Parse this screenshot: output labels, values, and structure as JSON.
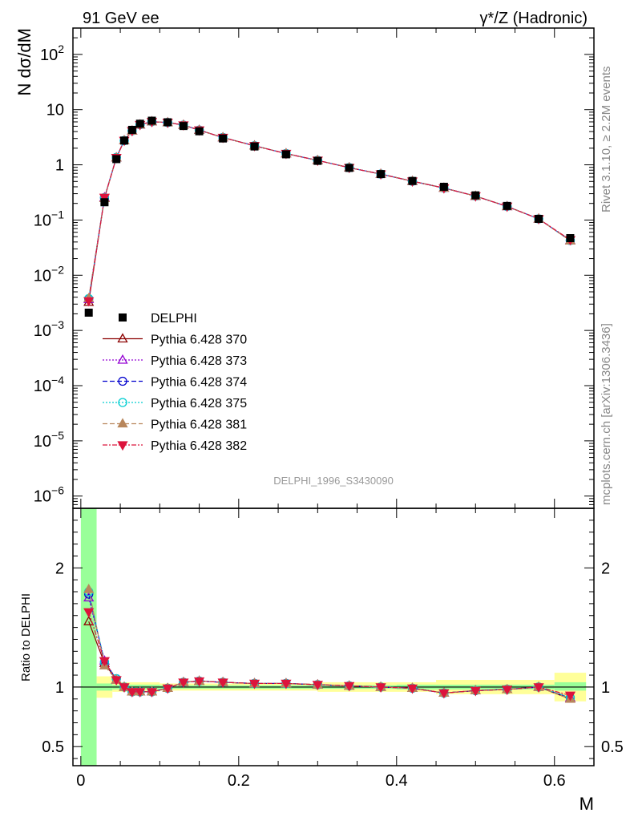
{
  "header": {
    "left_label": "91 GeV ee",
    "right_label": "γ*/Z (Hadronic)"
  },
  "side": {
    "rivet": "Rivet 3.1.10, ≥ 2.2M events",
    "source": "mcplots.cern.ch [arXiv:1306.3436]"
  },
  "watermark": "DELPHI_1996_S3430090",
  "chart_data": {
    "type": "line",
    "xlabel": "M",
    "ylabel": "N dσ/dM",
    "ratio_ylabel": "Ratio to DELPHI",
    "xlim": [
      -0.01,
      0.65
    ],
    "ylim": [
      6e-07,
      300
    ],
    "ratio_ylim": [
      0.34,
      2.5
    ],
    "yscale": "log",
    "x_ticks": [
      "0",
      "0.2",
      "0.4",
      "0.6"
    ],
    "y_ticks": [
      {
        "base": "10",
        "exp": "2"
      },
      {
        "base": "10",
        "exp": ""
      },
      {
        "base": "1",
        "exp": ""
      },
      {
        "base": "10",
        "exp": "−1"
      },
      {
        "base": "10",
        "exp": "−2"
      },
      {
        "base": "10",
        "exp": "−3"
      },
      {
        "base": "10",
        "exp": "−4"
      },
      {
        "base": "10",
        "exp": "−5"
      },
      {
        "base": "10",
        "exp": "−6"
      }
    ],
    "ratio_ticks": [
      "2",
      "1",
      "0.5"
    ],
    "legend_position": "center-left",
    "x": [
      0.01,
      0.03,
      0.045,
      0.055,
      0.065,
      0.075,
      0.09,
      0.11,
      0.13,
      0.15,
      0.18,
      0.22,
      0.26,
      0.3,
      0.34,
      0.38,
      0.42,
      0.46,
      0.5,
      0.54,
      0.58,
      0.62
    ],
    "data_series": {
      "name": "DELPHI",
      "values": [
        0.0021,
        0.21,
        1.27,
        2.75,
        4.3,
        5.55,
        6.3,
        5.9,
        5.05,
        4.05,
        3.0,
        2.15,
        1.55,
        1.18,
        0.88,
        0.68,
        0.51,
        0.4,
        0.28,
        0.18,
        0.105,
        0.047
      ],
      "color": "#000000",
      "band_stat": [
        [
          0.0,
          0.02,
          0.34,
          2.5
        ],
        [
          0.02,
          0.04,
          0.97,
          1.03
        ],
        [
          0.04,
          0.1,
          0.98,
          1.02
        ],
        [
          0.1,
          0.4,
          0.985,
          1.015
        ],
        [
          0.4,
          0.6,
          0.98,
          1.02
        ],
        [
          0.6,
          0.64,
          0.97,
          1.04
        ]
      ],
      "band_total": [
        [
          0.02,
          0.04,
          0.91,
          1.09
        ],
        [
          0.04,
          0.1,
          0.96,
          1.04
        ],
        [
          0.1,
          0.3,
          0.97,
          1.03
        ],
        [
          0.3,
          0.45,
          0.96,
          1.04
        ],
        [
          0.45,
          0.6,
          0.94,
          1.06
        ],
        [
          0.6,
          0.64,
          0.88,
          1.12
        ]
      ]
    },
    "series": [
      {
        "name": "Pythia 6.428 370",
        "color": "#8b0000",
        "dash": "",
        "marker": "triangle-open",
        "ratio": [
          1.55,
          1.2,
          1.06,
          1.0,
          0.96,
          0.96,
          0.96,
          0.99,
          1.04,
          1.05,
          1.04,
          1.03,
          1.03,
          1.02,
          1.01,
          1.0,
          0.99,
          0.95,
          0.97,
          0.98,
          1.0,
          0.9
        ]
      },
      {
        "name": "Pythia 6.428 373",
        "color": "#9400d3",
        "dash": "2,2",
        "marker": "triangle-open",
        "ratio": [
          1.75,
          1.22,
          1.06,
          1.0,
          0.96,
          0.96,
          0.96,
          0.99,
          1.04,
          1.05,
          1.04,
          1.03,
          1.03,
          1.02,
          1.01,
          1.0,
          0.99,
          0.95,
          0.97,
          0.98,
          1.0,
          0.91
        ]
      },
      {
        "name": "Pythia 6.428 374",
        "color": "#0000cd",
        "dash": "6,3",
        "marker": "circle-open",
        "ratio": [
          1.78,
          1.21,
          1.07,
          1.0,
          0.96,
          0.96,
          0.96,
          0.99,
          1.04,
          1.05,
          1.04,
          1.03,
          1.03,
          1.02,
          1.01,
          1.0,
          0.99,
          0.95,
          0.97,
          0.98,
          1.0,
          0.91
        ]
      },
      {
        "name": "Pythia 6.428 375",
        "color": "#00ced1",
        "dash": "2,2",
        "marker": "circle-open",
        "ratio": [
          1.8,
          1.21,
          1.07,
          1.0,
          0.96,
          0.96,
          0.96,
          0.99,
          1.04,
          1.05,
          1.04,
          1.03,
          1.03,
          1.02,
          1.01,
          1.0,
          0.99,
          0.95,
          0.97,
          0.98,
          1.0,
          0.91
        ]
      },
      {
        "name": "Pythia 6.428 381",
        "color": "#b8865b",
        "dash": "6,3",
        "marker": "triangle-filled",
        "ratio": [
          1.82,
          1.18,
          1.06,
          1.0,
          0.96,
          0.96,
          0.96,
          0.99,
          1.04,
          1.05,
          1.04,
          1.03,
          1.03,
          1.02,
          1.01,
          1.0,
          0.99,
          0.95,
          0.97,
          0.98,
          1.0,
          0.9
        ]
      },
      {
        "name": "Pythia 6.428 382",
        "color": "#dc143c",
        "dash": "6,2,2,2",
        "marker": "triangle-down-filled",
        "ratio": [
          1.63,
          1.22,
          1.06,
          1.0,
          0.96,
          0.96,
          0.96,
          0.99,
          1.04,
          1.05,
          1.04,
          1.03,
          1.03,
          1.02,
          1.01,
          1.0,
          0.99,
          0.95,
          0.97,
          0.98,
          1.0,
          0.93
        ]
      }
    ]
  }
}
